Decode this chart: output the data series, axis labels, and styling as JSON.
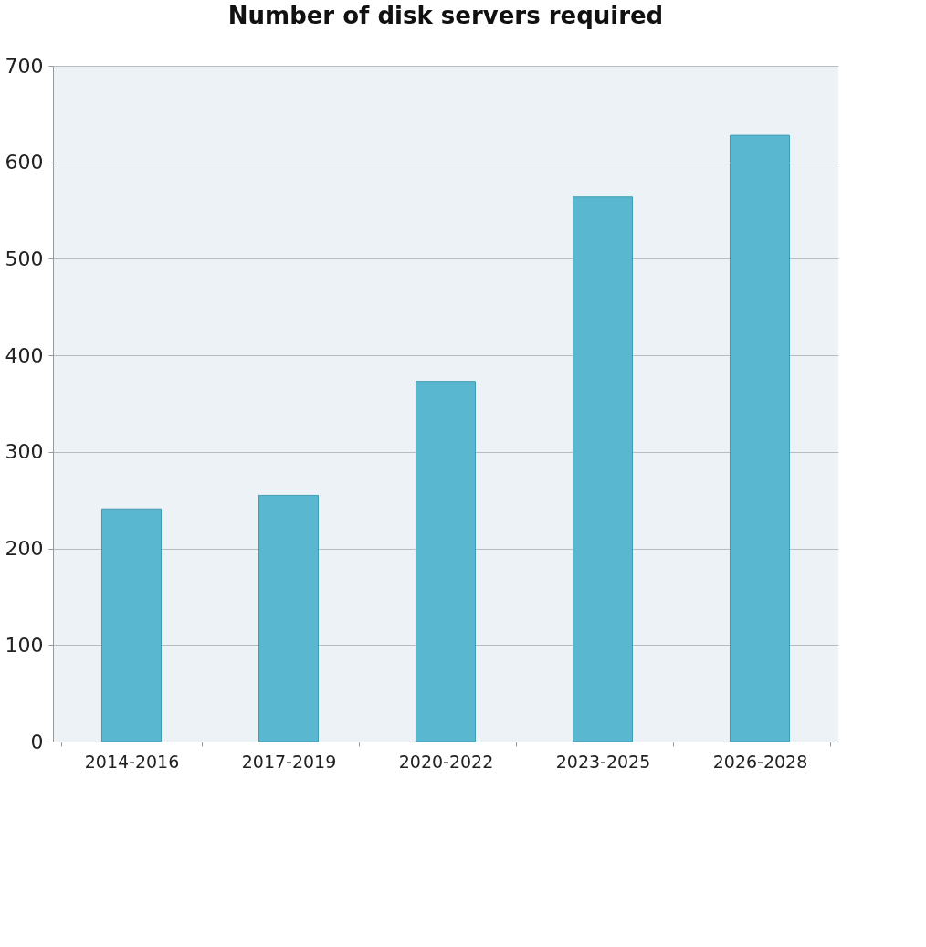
{
  "chart_data": {
    "type": "bar",
    "title": "Number of disk servers required",
    "categories": [
      "2014-2016",
      "2017-2019",
      "2020-2022",
      "2023-2025",
      "2026-2028"
    ],
    "values": [
      241,
      255,
      373,
      564,
      628
    ],
    "color": "#5ab7d0",
    "ylim": [
      0,
      700
    ],
    "yticks": [
      0,
      100,
      200,
      300,
      400,
      500,
      600,
      700
    ],
    "grid": "y"
  }
}
